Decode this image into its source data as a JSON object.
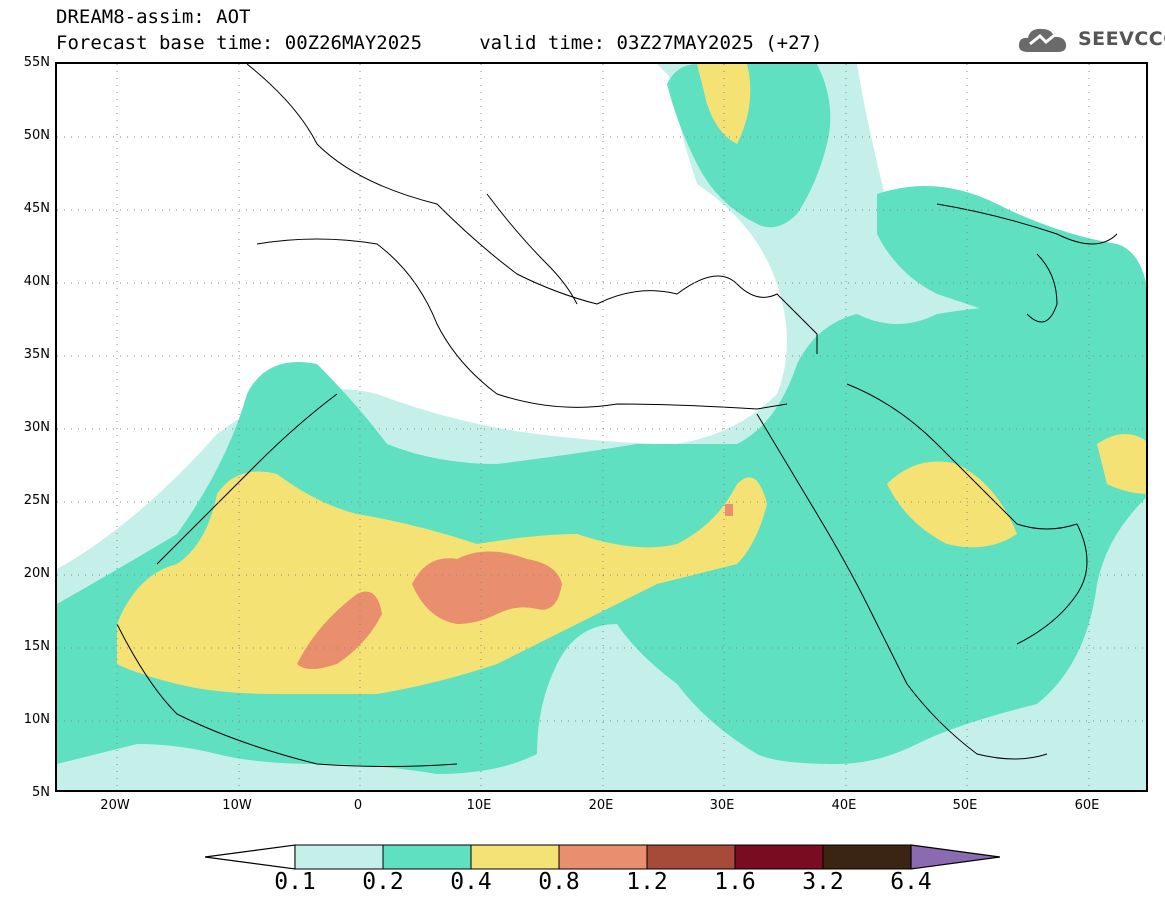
{
  "header": {
    "title": "DREAM8-assim: AOT",
    "subtitle": "Forecast base time: 00Z26MAY2025     valid time: 03Z27MAY2025 (+27)"
  },
  "logo": {
    "text": "SEEVCCC",
    "icon": "cloud-icon"
  },
  "map": {
    "projection": "lat-lon",
    "lon_range": [
      -25,
      65
    ],
    "lat_range": [
      5,
      55
    ],
    "grid": "dotted",
    "lat_labels": [
      "55N",
      "50N",
      "45N",
      "40N",
      "35N",
      "30N",
      "25N",
      "20N",
      "15N",
      "10N",
      "5N"
    ],
    "lon_labels": [
      "20W",
      "10W",
      "0",
      "10E",
      "20E",
      "30E",
      "40E",
      "50E",
      "60E"
    ]
  },
  "legend": {
    "levels": [
      "0.1",
      "0.2",
      "0.4",
      "0.8",
      "1.2",
      "1.6",
      "3.2",
      "6.4"
    ],
    "colors": [
      "#c5f0ea",
      "#5fe0c1",
      "#f5e275",
      "#e98f6d",
      "#a64a3a",
      "#7a0c22",
      "#3a2512",
      "#8a6ab0"
    ]
  }
}
